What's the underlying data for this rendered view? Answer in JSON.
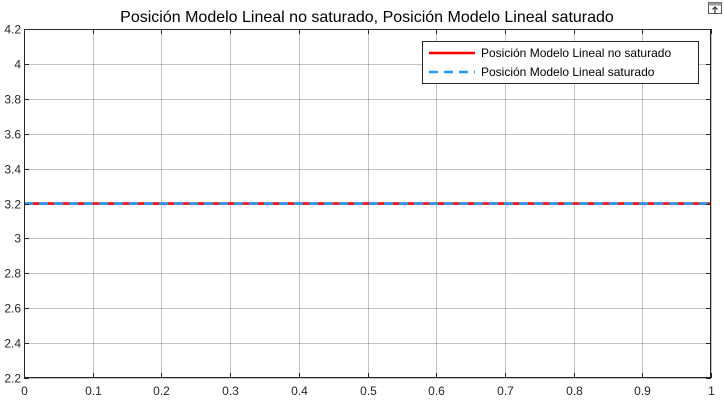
{
  "toolbar": {
    "icon": "export-figure-icon"
  },
  "chart_data": {
    "type": "line",
    "title": "Posición Modelo Lineal no saturado, Posición Modelo Lineal saturado",
    "xlabel": "",
    "ylabel": "",
    "xlim": [
      0,
      1
    ],
    "ylim": [
      2.2,
      4.2
    ],
    "x_ticks": [
      0,
      0.1,
      0.2,
      0.3,
      0.4,
      0.5,
      0.6,
      0.7,
      0.8,
      0.9,
      1
    ],
    "x_tick_labels": [
      "0",
      "0.1",
      "0.2",
      "0.3",
      "0.4",
      "0.5",
      "0.6",
      "0.7",
      "0.8",
      "0.9",
      "1"
    ],
    "y_ticks": [
      2.2,
      2.4,
      2.6,
      2.8,
      3,
      3.2,
      3.4,
      3.6,
      3.8,
      4,
      4.2
    ],
    "y_tick_labels": [
      "2.2",
      "2.4",
      "2.6",
      "2.8",
      "3",
      "3.2",
      "3.4",
      "3.6",
      "3.8",
      "4",
      "4.2"
    ],
    "grid": true,
    "legend_position": "top-right",
    "series": [
      {
        "name": "Posición Modelo Lineal no saturado",
        "color": "#ff0000",
        "style": "solid",
        "x": [
          0,
          1
        ],
        "y": [
          3.2,
          3.2
        ]
      },
      {
        "name": "Posición Modelo Lineal saturado",
        "color": "#1e9bff",
        "style": "dashed",
        "x": [
          0,
          1
        ],
        "y": [
          3.2,
          3.2
        ]
      }
    ]
  }
}
